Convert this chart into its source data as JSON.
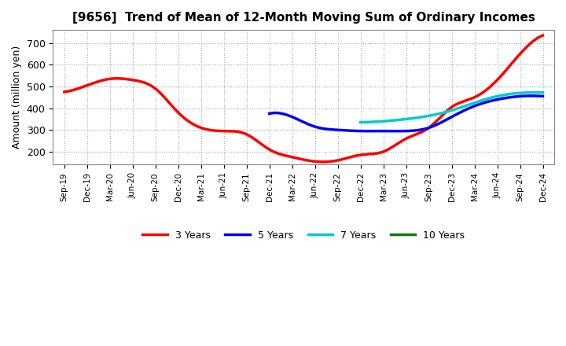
{
  "title": "[9656]  Trend of Mean of 12-Month Moving Sum of Ordinary Incomes",
  "ylabel": "Amount (million yen)",
  "ylim": [
    140,
    760
  ],
  "yticks": [
    200,
    300,
    400,
    500,
    600,
    700
  ],
  "background_color": "#ffffff",
  "grid_color": "#aaaaaa",
  "x_labels": [
    "Sep-19",
    "Dec-19",
    "Mar-20",
    "Jun-20",
    "Sep-20",
    "Dec-20",
    "Mar-21",
    "Jun-21",
    "Sep-21",
    "Dec-21",
    "Mar-22",
    "Jun-22",
    "Sep-22",
    "Dec-22",
    "Mar-23",
    "Jun-23",
    "Sep-23",
    "Dec-23",
    "Mar-24",
    "Jun-24",
    "Sep-24",
    "Dec-24"
  ],
  "series": {
    "3y": {
      "color": "#ff0000",
      "label": "3 Years",
      "x": [
        "Sep-19",
        "Dec-19",
        "Mar-20",
        "Jun-20",
        "Sep-20",
        "Dec-20",
        "Mar-21",
        "Jun-21",
        "Sep-21",
        "Dec-21",
        "Mar-22",
        "Jun-22",
        "Sep-22",
        "Dec-22",
        "Mar-23",
        "Jun-23",
        "Sep-23",
        "Dec-23",
        "Mar-24",
        "Jun-24",
        "Sep-24",
        "Dec-24"
      ],
      "y": [
        475,
        505,
        535,
        530,
        490,
        380,
        310,
        295,
        280,
        210,
        175,
        155,
        160,
        185,
        200,
        260,
        310,
        405,
        450,
        530,
        650,
        735
      ]
    },
    "5y": {
      "color": "#0000ff",
      "label": "5 Years",
      "x": [
        "Sep-19",
        "Dec-19",
        "Mar-20",
        "Jun-20",
        "Sep-20",
        "Dec-20",
        "Mar-21",
        "Jun-21",
        "Sep-21",
        "Dec-21",
        "Mar-22",
        "Jun-22",
        "Sep-22",
        "Dec-22",
        "Mar-23",
        "Jun-23",
        "Sep-23",
        "Dec-23",
        "Mar-24",
        "Jun-24",
        "Sep-24",
        "Dec-24"
      ],
      "y": [
        null,
        null,
        null,
        null,
        null,
        null,
        null,
        null,
        null,
        375,
        360,
        315,
        300,
        295,
        295,
        295,
        310,
        360,
        410,
        440,
        455,
        455
      ]
    },
    "7y": {
      "color": "#00cccc",
      "label": "7 Years",
      "x": [
        "Dec-22",
        "Mar-23",
        "Jun-23",
        "Sep-23",
        "Dec-23",
        "Mar-24",
        "Jun-24",
        "Sep-24",
        "Dec-24"
      ],
      "y": [
        335,
        340,
        350,
        365,
        390,
        425,
        455,
        470,
        472
      ]
    },
    "10y": {
      "color": "#008000",
      "label": "10 Years",
      "x": [],
      "y": []
    }
  }
}
